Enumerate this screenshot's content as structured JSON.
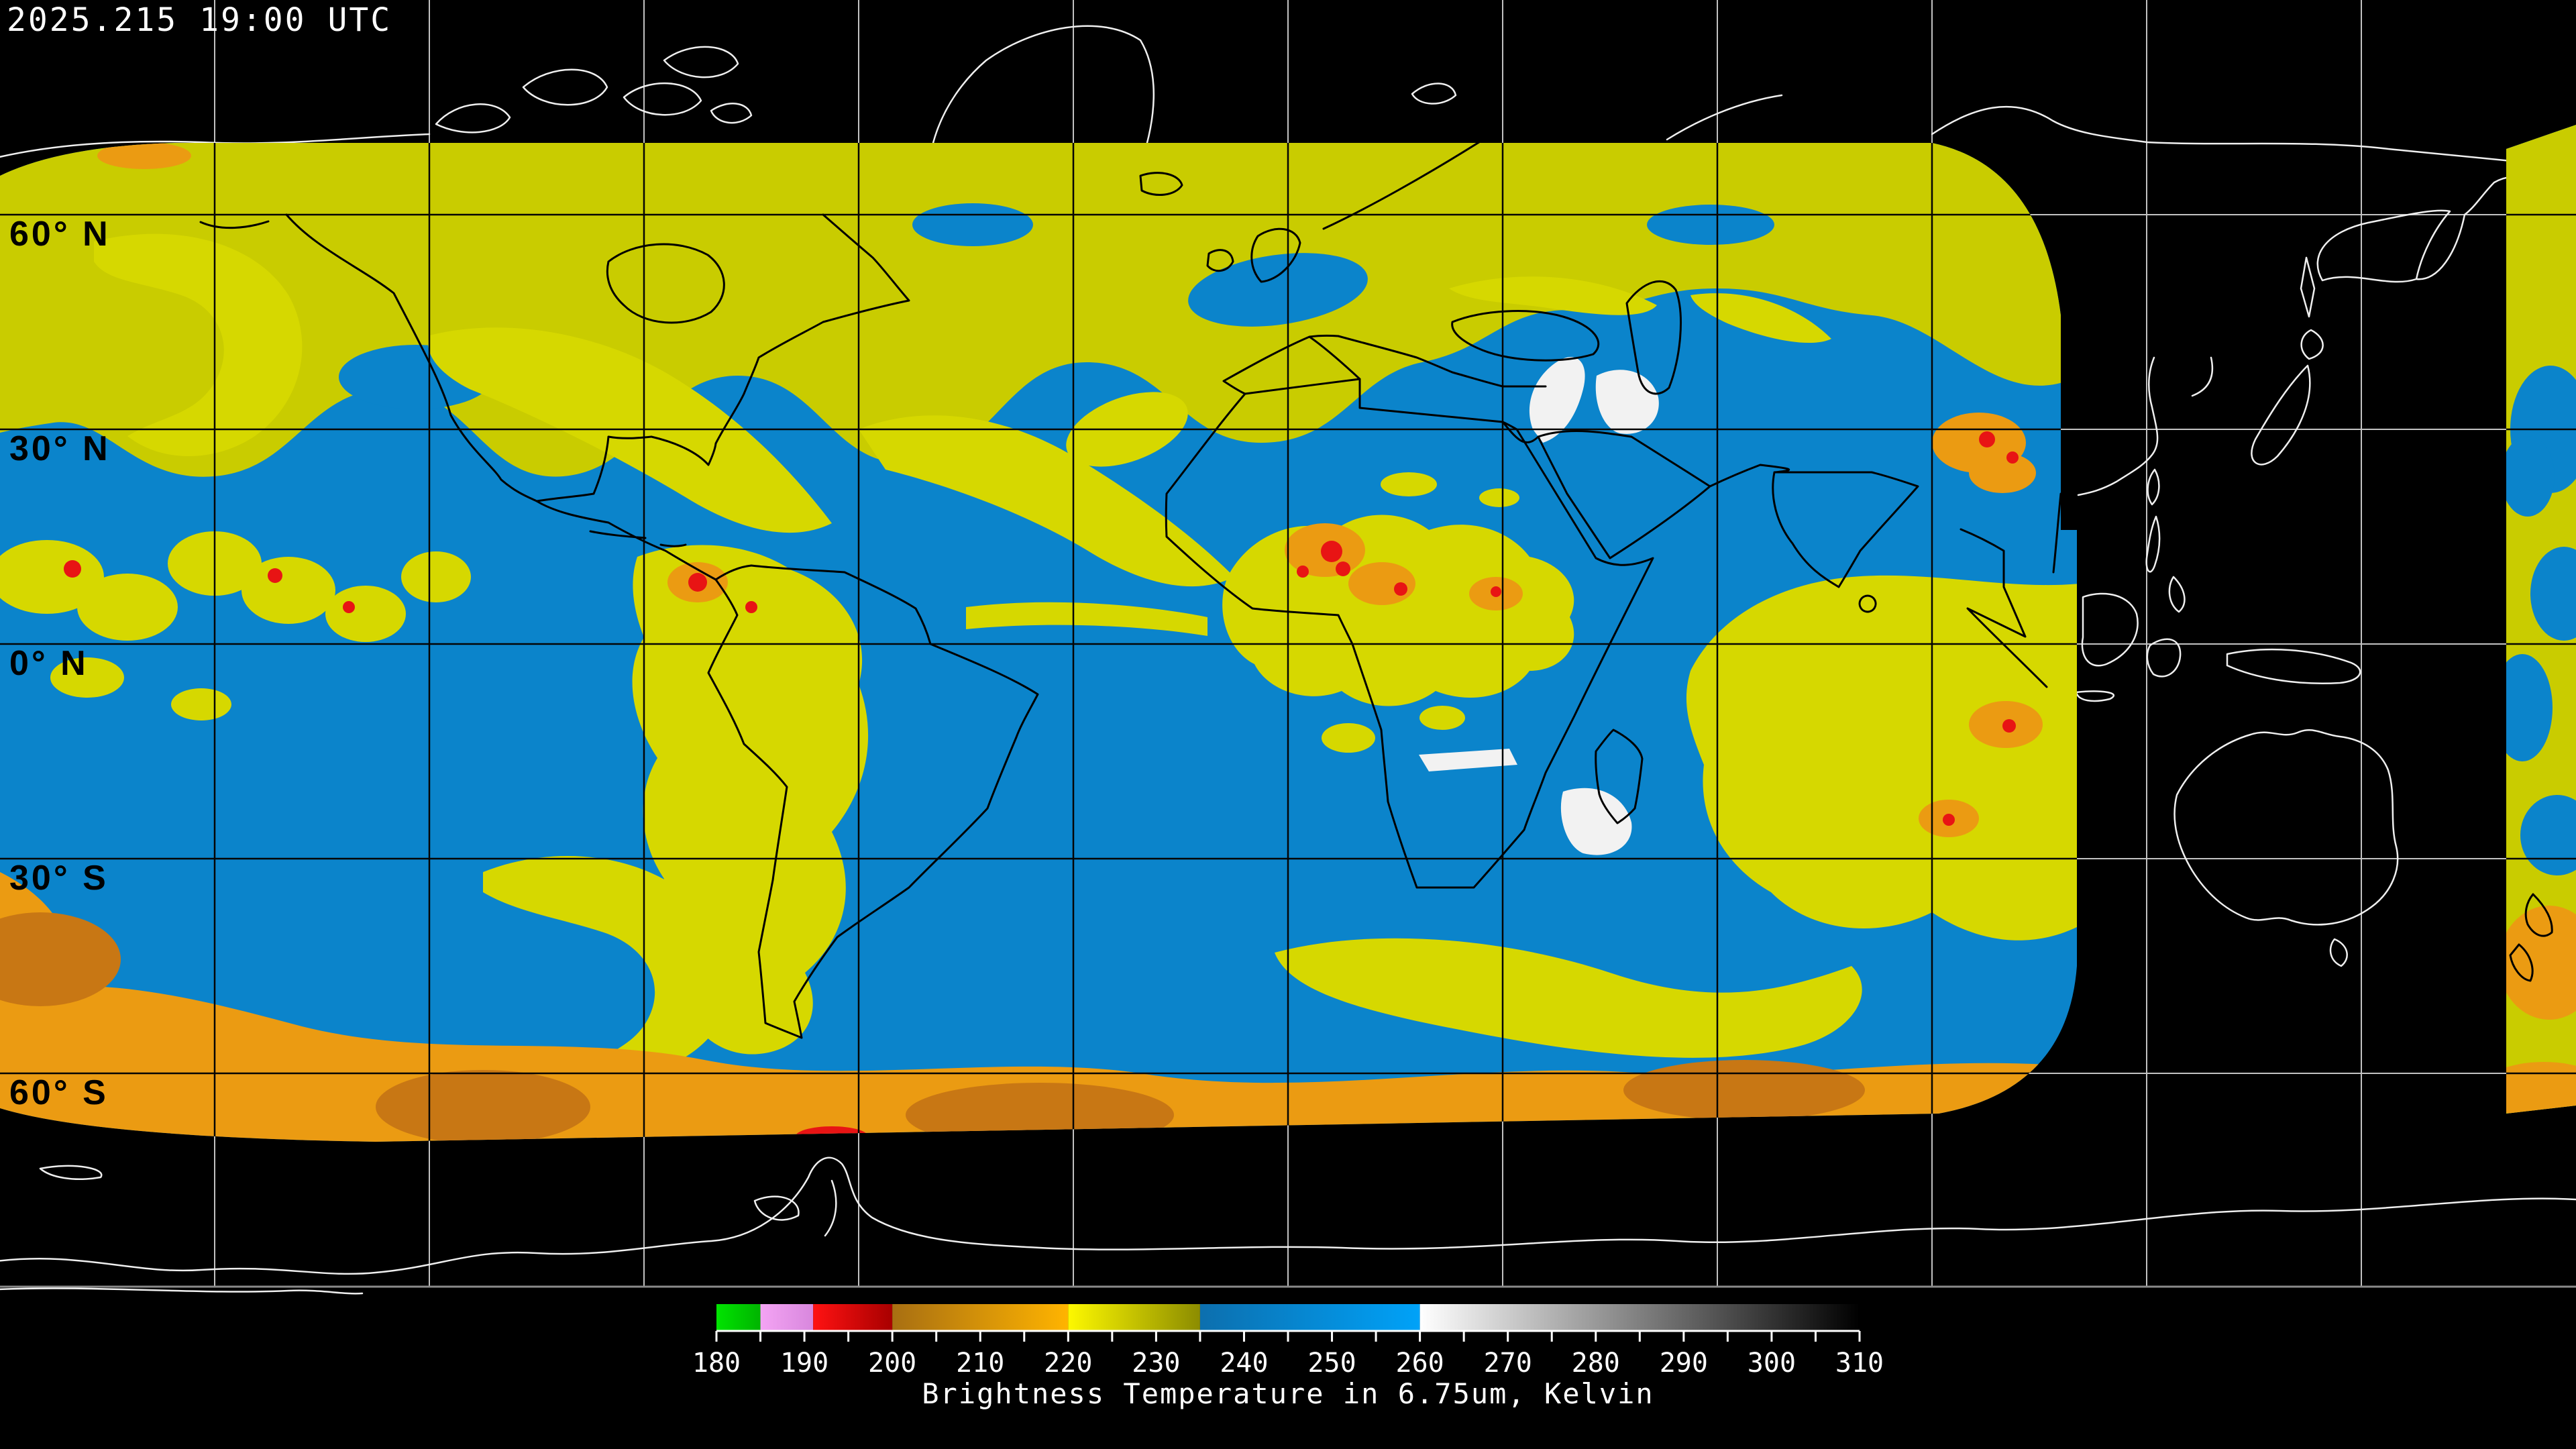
{
  "header": {
    "timestamp": "2025.215  19:00 UTC"
  },
  "map": {
    "lat_labels": [
      {
        "text": "60° N"
      },
      {
        "text": "30° N"
      },
      {
        "text": "0° N"
      },
      {
        "text": "30° S"
      },
      {
        "text": "60° S"
      }
    ]
  },
  "colorbar": {
    "title": "Brightness Temperature in 6.75um, Kelvin",
    "min": 180,
    "max": 310,
    "minor_step": 5,
    "major_step": 10,
    "tick_labels": [
      180,
      190,
      200,
      210,
      220,
      230,
      240,
      250,
      260,
      270,
      280,
      290,
      300,
      310
    ],
    "segments": [
      {
        "from": 180,
        "to": 185,
        "color_start": "#00e400",
        "color_end": "#00b400",
        "name": "green"
      },
      {
        "from": 185,
        "to": 191,
        "color_start": "#f4a4f4",
        "color_end": "#d887dd",
        "name": "pink"
      },
      {
        "from": 191,
        "to": 200,
        "color_start": "#ff1212",
        "color_end": "#a80000",
        "name": "red"
      },
      {
        "from": 200,
        "to": 220,
        "color_start": "#a86f12",
        "color_end": "#ffb400",
        "name": "orange"
      },
      {
        "from": 220,
        "to": 235,
        "color_start": "#fdf800",
        "color_end": "#8c8c00",
        "name": "yellow"
      },
      {
        "from": 235,
        "to": 260,
        "color_start": "#0c6fae",
        "color_end": "#00a2f8",
        "name": "blue"
      },
      {
        "from": 260,
        "to": 310,
        "color_start": "#ffffff",
        "color_end": "#000000",
        "name": "grayscale"
      }
    ]
  },
  "palette": {
    "bg": "#000000",
    "text_light": "#ffffff",
    "text_dark": "#000000",
    "grid_light": "#c2c2c2",
    "grid_dark": "#050505",
    "coast_light": "#efefef",
    "coast_dark": "#000000",
    "data_blue": "#0b84cb",
    "yellow": "#c9cc00",
    "yellow_blob": "#d6d800",
    "yellow_pale": "#e9eb55",
    "orange": "#eb9b12",
    "orange_deep": "#c87714",
    "red": "#e81414",
    "white_patch": "#f2f2f2"
  }
}
